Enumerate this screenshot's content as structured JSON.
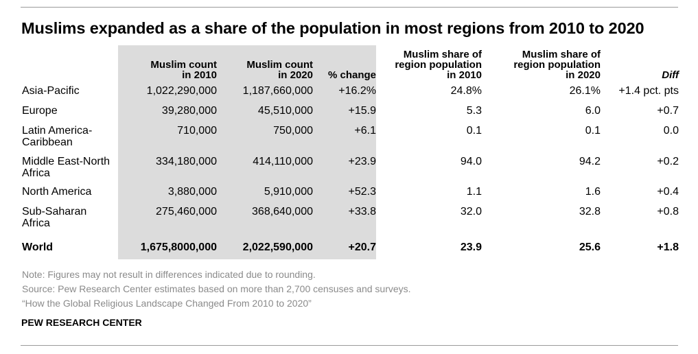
{
  "title": "Muslims expanded as a share of the population in most regions from 2010 to 2020",
  "chart_data": {
    "type": "table",
    "columns": [
      "Muslim count in 2010",
      "Muslim count in 2020",
      "% change",
      "Muslim share of region population in 2010",
      "Muslim share of region population in 2020",
      "Diff"
    ],
    "header_lines": [
      [
        "Muslim count",
        "in 2010"
      ],
      [
        "Muslim count",
        "in 2020"
      ],
      [
        "% change"
      ],
      [
        "Muslim share of",
        "region population",
        "in 2010"
      ],
      [
        "Muslim share of",
        "region population",
        "in 2020"
      ],
      [
        "Diff"
      ]
    ],
    "rows": [
      {
        "region": "Asia-Pacific",
        "values": [
          "1,022,290,000",
          "1,187,660,000",
          "+16.2%",
          "24.8%",
          "26.1%",
          "+1.4 pct. pts"
        ]
      },
      {
        "region": "Europe",
        "values": [
          "39,280,000",
          "45,510,000",
          "+15.9",
          "5.3",
          "6.0",
          "+0.7"
        ]
      },
      {
        "region": "Latin America-Caribbean",
        "values": [
          "710,000",
          "750,000",
          "+6.1",
          "0.1",
          "0.1",
          "0.0"
        ]
      },
      {
        "region": "Middle East-North Africa",
        "values": [
          "334,180,000",
          "414,110,000",
          "+23.9",
          "94.0",
          "94.2",
          "+0.2"
        ]
      },
      {
        "region": "North America",
        "values": [
          "3,880,000",
          "5,910,000",
          "+52.3",
          "1.1",
          "1.6",
          "+0.4"
        ]
      },
      {
        "region": "Sub-Saharan Africa",
        "values": [
          "275,460,000",
          "368,640,000",
          "+33.8",
          "32.0",
          "32.8",
          "+0.8"
        ]
      },
      {
        "region": "World",
        "values": [
          "1,675,8000,000",
          "2,022,590,000",
          "+20.7",
          "23.9",
          "25.6",
          "+1.8"
        ]
      }
    ],
    "highlight_columns": [
      0,
      1,
      2
    ],
    "highlight_color": "#dcdcdc"
  },
  "notes": [
    "Note: Figures may not result in differences indicated due to rounding.",
    "Source: Pew Research Center estimates based on more than 2,700 censuses and surveys.",
    "“How the Global Religious Landscape Changed From 2010 to 2020”"
  ],
  "brand": "PEW RESEARCH CENTER"
}
